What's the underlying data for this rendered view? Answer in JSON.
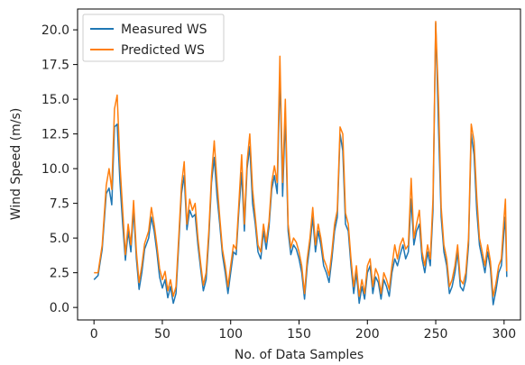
{
  "chart_data": {
    "type": "line",
    "title": "",
    "xlabel": "No. of Data Samples",
    "ylabel": "Wind Speed (m/s)",
    "xlim": [
      -12,
      312
    ],
    "ylim": [
      -0.9,
      21.5
    ],
    "xticks": [
      0,
      50,
      100,
      150,
      200,
      250,
      300
    ],
    "yticks": [
      0.0,
      2.5,
      5.0,
      7.5,
      10.0,
      12.5,
      15.0,
      17.5,
      20.0
    ],
    "xtick_labels": [
      "0",
      "50",
      "100",
      "150",
      "200",
      "250",
      "300"
    ],
    "ytick_labels": [
      "0.0",
      "2.5",
      "5.0",
      "7.5",
      "10.0",
      "12.5",
      "15.0",
      "17.5",
      "20.0"
    ],
    "grid": false,
    "legend_position": "top-left",
    "series": [
      {
        "name": "Measured WS",
        "color": "#1f77b4",
        "points": [
          [
            0,
            2.0
          ],
          [
            3,
            2.3
          ],
          [
            6,
            4.2
          ],
          [
            9,
            8.2
          ],
          [
            11,
            8.6
          ],
          [
            13,
            7.4
          ],
          [
            15,
            13.0
          ],
          [
            17,
            13.2
          ],
          [
            19,
            9.0
          ],
          [
            21,
            6.0
          ],
          [
            23,
            3.4
          ],
          [
            25,
            5.5
          ],
          [
            27,
            4.0
          ],
          [
            29,
            7.0
          ],
          [
            31,
            3.5
          ],
          [
            33,
            1.3
          ],
          [
            35,
            2.5
          ],
          [
            37,
            4.2
          ],
          [
            40,
            5.0
          ],
          [
            42,
            6.5
          ],
          [
            44,
            5.5
          ],
          [
            46,
            4.0
          ],
          [
            48,
            2.2
          ],
          [
            50,
            1.4
          ],
          [
            52,
            2.0
          ],
          [
            54,
            0.7
          ],
          [
            56,
            1.5
          ],
          [
            58,
            0.3
          ],
          [
            60,
            1.0
          ],
          [
            62,
            4.5
          ],
          [
            64,
            8.2
          ],
          [
            66,
            9.5
          ],
          [
            68,
            5.6
          ],
          [
            70,
            7.0
          ],
          [
            72,
            6.5
          ],
          [
            74,
            6.7
          ],
          [
            76,
            4.5
          ],
          [
            78,
            2.8
          ],
          [
            80,
            1.2
          ],
          [
            82,
            2.0
          ],
          [
            84,
            5.0
          ],
          [
            86,
            9.0
          ],
          [
            88,
            10.8
          ],
          [
            90,
            8.0
          ],
          [
            92,
            6.0
          ],
          [
            94,
            3.8
          ],
          [
            96,
            2.5
          ],
          [
            98,
            1.0
          ],
          [
            100,
            2.5
          ],
          [
            102,
            4.0
          ],
          [
            104,
            3.8
          ],
          [
            106,
            7.0
          ],
          [
            108,
            9.7
          ],
          [
            110,
            5.5
          ],
          [
            112,
            10.0
          ],
          [
            114,
            11.6
          ],
          [
            116,
            7.5
          ],
          [
            118,
            6.0
          ],
          [
            120,
            4.0
          ],
          [
            122,
            3.5
          ],
          [
            124,
            5.5
          ],
          [
            126,
            4.2
          ],
          [
            128,
            5.8
          ],
          [
            130,
            8.5
          ],
          [
            132,
            9.5
          ],
          [
            134,
            8.2
          ],
          [
            136,
            16.8
          ],
          [
            138,
            8.0
          ],
          [
            140,
            13.8
          ],
          [
            142,
            5.5
          ],
          [
            144,
            3.8
          ],
          [
            146,
            4.5
          ],
          [
            148,
            4.2
          ],
          [
            150,
            3.5
          ],
          [
            152,
            2.5
          ],
          [
            154,
            0.6
          ],
          [
            156,
            3.0
          ],
          [
            158,
            4.5
          ],
          [
            160,
            6.5
          ],
          [
            162,
            4.0
          ],
          [
            164,
            5.5
          ],
          [
            166,
            4.5
          ],
          [
            168,
            3.0
          ],
          [
            170,
            2.5
          ],
          [
            172,
            1.8
          ],
          [
            174,
            3.5
          ],
          [
            176,
            5.5
          ],
          [
            178,
            6.5
          ],
          [
            180,
            12.5
          ],
          [
            182,
            11.3
          ],
          [
            184,
            6.0
          ],
          [
            186,
            5.5
          ],
          [
            188,
            3.0
          ],
          [
            190,
            1.0
          ],
          [
            192,
            2.5
          ],
          [
            194,
            0.3
          ],
          [
            196,
            1.5
          ],
          [
            198,
            0.6
          ],
          [
            200,
            2.5
          ],
          [
            202,
            3.0
          ],
          [
            204,
            1.0
          ],
          [
            206,
            2.2
          ],
          [
            208,
            1.8
          ],
          [
            210,
            0.6
          ],
          [
            212,
            2.0
          ],
          [
            214,
            1.5
          ],
          [
            216,
            0.8
          ],
          [
            218,
            2.5
          ],
          [
            220,
            3.5
          ],
          [
            222,
            3.0
          ],
          [
            224,
            3.8
          ],
          [
            226,
            4.5
          ],
          [
            228,
            3.5
          ],
          [
            230,
            4.0
          ],
          [
            232,
            7.8
          ],
          [
            234,
            4.5
          ],
          [
            236,
            5.5
          ],
          [
            238,
            6.0
          ],
          [
            240,
            3.5
          ],
          [
            242,
            2.5
          ],
          [
            244,
            4.0
          ],
          [
            246,
            3.0
          ],
          [
            248,
            7.0
          ],
          [
            250,
            20.5
          ],
          [
            252,
            13.0
          ],
          [
            254,
            6.5
          ],
          [
            256,
            4.0
          ],
          [
            258,
            3.0
          ],
          [
            260,
            1.0
          ],
          [
            262,
            1.5
          ],
          [
            264,
            2.5
          ],
          [
            266,
            4.0
          ],
          [
            268,
            1.5
          ],
          [
            270,
            1.2
          ],
          [
            272,
            2.0
          ],
          [
            274,
            4.5
          ],
          [
            276,
            12.5
          ],
          [
            278,
            11.0
          ],
          [
            280,
            7.0
          ],
          [
            282,
            4.5
          ],
          [
            284,
            3.5
          ],
          [
            286,
            2.5
          ],
          [
            288,
            4.0
          ],
          [
            290,
            2.8
          ],
          [
            292,
            0.2
          ],
          [
            294,
            1.2
          ],
          [
            296,
            2.5
          ],
          [
            298,
            3.0
          ],
          [
            300,
            5.5
          ],
          [
            301,
            6.5
          ],
          [
            302,
            2.2
          ]
        ]
      },
      {
        "name": "Predicted WS",
        "color": "#ff7f0e",
        "points": [
          [
            0,
            2.5
          ],
          [
            3,
            2.5
          ],
          [
            6,
            4.5
          ],
          [
            9,
            8.8
          ],
          [
            11,
            10.0
          ],
          [
            13,
            8.5
          ],
          [
            15,
            14.3
          ],
          [
            17,
            15.3
          ],
          [
            19,
            10.3
          ],
          [
            21,
            7.0
          ],
          [
            23,
            3.8
          ],
          [
            25,
            6.0
          ],
          [
            27,
            4.5
          ],
          [
            29,
            7.7
          ],
          [
            31,
            4.0
          ],
          [
            33,
            1.8
          ],
          [
            35,
            3.0
          ],
          [
            37,
            4.6
          ],
          [
            40,
            5.5
          ],
          [
            42,
            7.2
          ],
          [
            44,
            6.0
          ],
          [
            46,
            4.5
          ],
          [
            48,
            2.8
          ],
          [
            50,
            2.0
          ],
          [
            52,
            2.6
          ],
          [
            54,
            1.2
          ],
          [
            56,
            2.0
          ],
          [
            58,
            0.8
          ],
          [
            60,
            1.5
          ],
          [
            62,
            5.0
          ],
          [
            64,
            8.8
          ],
          [
            66,
            10.5
          ],
          [
            68,
            6.0
          ],
          [
            70,
            7.8
          ],
          [
            72,
            7.0
          ],
          [
            74,
            7.5
          ],
          [
            76,
            5.0
          ],
          [
            78,
            3.2
          ],
          [
            80,
            1.6
          ],
          [
            82,
            2.5
          ],
          [
            84,
            5.5
          ],
          [
            86,
            9.5
          ],
          [
            88,
            12.0
          ],
          [
            90,
            9.0
          ],
          [
            92,
            6.5
          ],
          [
            94,
            4.2
          ],
          [
            96,
            3.0
          ],
          [
            98,
            1.5
          ],
          [
            100,
            3.0
          ],
          [
            102,
            4.5
          ],
          [
            104,
            4.2
          ],
          [
            106,
            7.5
          ],
          [
            108,
            11.0
          ],
          [
            110,
            6.0
          ],
          [
            112,
            10.5
          ],
          [
            114,
            12.5
          ],
          [
            116,
            8.5
          ],
          [
            118,
            6.5
          ],
          [
            120,
            4.5
          ],
          [
            122,
            4.0
          ],
          [
            124,
            6.0
          ],
          [
            126,
            4.7
          ],
          [
            128,
            6.2
          ],
          [
            130,
            9.0
          ],
          [
            132,
            10.2
          ],
          [
            134,
            9.0
          ],
          [
            136,
            18.1
          ],
          [
            138,
            9.0
          ],
          [
            140,
            15.0
          ],
          [
            142,
            6.0
          ],
          [
            144,
            4.3
          ],
          [
            146,
            5.0
          ],
          [
            148,
            4.7
          ],
          [
            150,
            4.0
          ],
          [
            152,
            3.0
          ],
          [
            154,
            1.0
          ],
          [
            156,
            3.5
          ],
          [
            158,
            5.0
          ],
          [
            160,
            7.2
          ],
          [
            162,
            4.5
          ],
          [
            164,
            6.0
          ],
          [
            166,
            5.0
          ],
          [
            168,
            3.5
          ],
          [
            170,
            3.0
          ],
          [
            172,
            2.3
          ],
          [
            174,
            4.0
          ],
          [
            176,
            6.0
          ],
          [
            178,
            7.0
          ],
          [
            180,
            13.0
          ],
          [
            182,
            12.5
          ],
          [
            184,
            6.8
          ],
          [
            186,
            6.0
          ],
          [
            188,
            3.5
          ],
          [
            190,
            1.5
          ],
          [
            192,
            3.0
          ],
          [
            194,
            0.8
          ],
          [
            196,
            2.0
          ],
          [
            198,
            1.0
          ],
          [
            200,
            3.0
          ],
          [
            202,
            3.5
          ],
          [
            204,
            1.5
          ],
          [
            206,
            2.8
          ],
          [
            208,
            2.3
          ],
          [
            210,
            1.0
          ],
          [
            212,
            2.5
          ],
          [
            214,
            2.0
          ],
          [
            216,
            1.3
          ],
          [
            218,
            3.0
          ],
          [
            220,
            4.5
          ],
          [
            222,
            3.5
          ],
          [
            224,
            4.5
          ],
          [
            226,
            5.0
          ],
          [
            228,
            4.2
          ],
          [
            230,
            4.5
          ],
          [
            232,
            9.3
          ],
          [
            234,
            5.0
          ],
          [
            236,
            6.0
          ],
          [
            238,
            7.0
          ],
          [
            240,
            4.0
          ],
          [
            242,
            3.0
          ],
          [
            244,
            4.5
          ],
          [
            246,
            3.5
          ],
          [
            248,
            7.8
          ],
          [
            250,
            20.6
          ],
          [
            252,
            15.0
          ],
          [
            254,
            7.2
          ],
          [
            256,
            4.5
          ],
          [
            258,
            3.5
          ],
          [
            260,
            1.5
          ],
          [
            262,
            2.0
          ],
          [
            264,
            3.0
          ],
          [
            266,
            4.5
          ],
          [
            268,
            2.0
          ],
          [
            270,
            1.7
          ],
          [
            272,
            2.5
          ],
          [
            274,
            5.0
          ],
          [
            276,
            13.2
          ],
          [
            278,
            12.0
          ],
          [
            280,
            8.0
          ],
          [
            282,
            5.0
          ],
          [
            284,
            4.0
          ],
          [
            286,
            3.0
          ],
          [
            288,
            4.5
          ],
          [
            290,
            3.3
          ],
          [
            292,
            0.8
          ],
          [
            294,
            1.7
          ],
          [
            296,
            3.0
          ],
          [
            298,
            3.5
          ],
          [
            300,
            6.5
          ],
          [
            301,
            7.8
          ],
          [
            302,
            2.6
          ]
        ]
      }
    ]
  }
}
